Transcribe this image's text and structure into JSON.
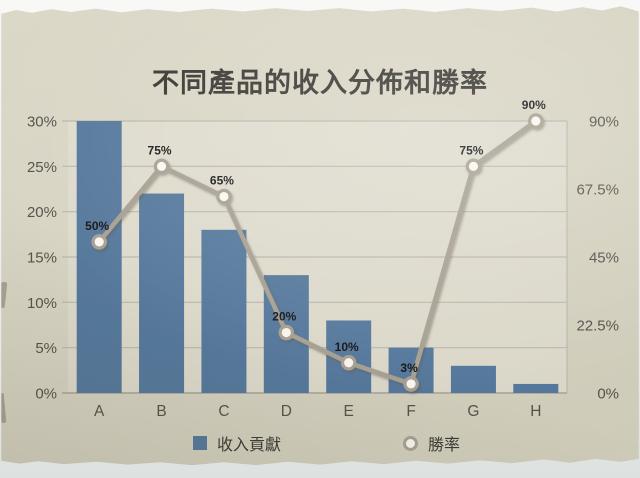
{
  "title": "不同產品的收入分佈和勝率",
  "legend": {
    "bar_label": "收入貢獻",
    "line_label": "勝率"
  },
  "colors": {
    "bar": "#54779b",
    "line": "#a69f91",
    "marker_fill": "#faf7f0",
    "grid": "#b9b6ab",
    "baseline": "#a5a196",
    "plot_fill": "#e3e1d6",
    "axis_text": "#54514a",
    "point_label_text": "#141414",
    "title_text": "#35332e"
  },
  "chart_data": {
    "type": "bar",
    "subtype": "combo-bar-line",
    "title": "不同產品的收入分佈和勝率",
    "categories": [
      "A",
      "B",
      "C",
      "D",
      "E",
      "F",
      "G",
      "H"
    ],
    "series": [
      {
        "name": "收入貢獻",
        "type": "bar",
        "axis": "left",
        "unit": "%",
        "values": [
          30,
          22,
          18,
          13,
          8,
          5,
          3,
          1
        ]
      },
      {
        "name": "勝率",
        "type": "line",
        "axis": "right",
        "unit": "%",
        "values": [
          50,
          75,
          65,
          20,
          10,
          3,
          75,
          90
        ],
        "point_labels": [
          "50%",
          "75%",
          "65%",
          "20%",
          "10%",
          "3%",
          "75%",
          "90%"
        ]
      }
    ],
    "left_axis": {
      "min": 0,
      "max": 30,
      "tick_values": [
        0,
        5,
        10,
        15,
        20,
        25,
        30
      ],
      "tick_labels": [
        "0%",
        "5%",
        "10%",
        "15%",
        "20%",
        "25%",
        "30%"
      ]
    },
    "right_axis": {
      "min": 0,
      "max": 90,
      "tick_values": [
        0,
        22.5,
        45,
        67.5,
        90
      ],
      "tick_labels": [
        "0%",
        "22.5%",
        "45%",
        "67.5%",
        "90%"
      ]
    },
    "grid": "horizontal",
    "legend_position": "bottom"
  }
}
